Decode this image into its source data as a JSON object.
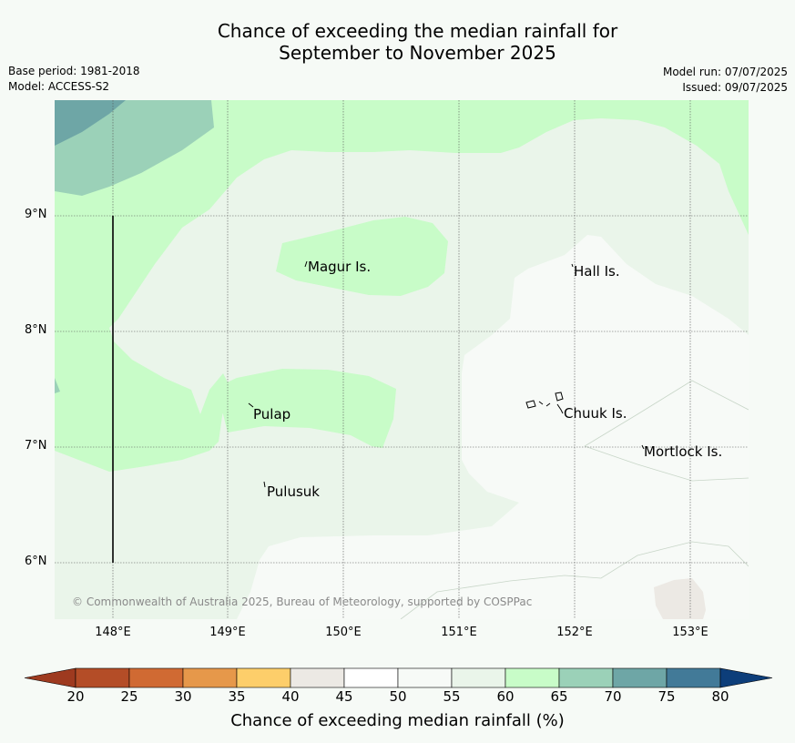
{
  "title": {
    "line1": "Chance of exceeding the median rainfall for",
    "line2": "September to November 2025"
  },
  "meta": {
    "base_period": "Base period: 1981-2018",
    "model": "Model: ACCESS-S2",
    "model_run": "Model run: 07/07/2025",
    "issued": "Issued: 09/07/2025"
  },
  "map": {
    "lat_labels": [
      "9°N",
      "8°N",
      "7°N",
      "6°N"
    ],
    "lon_labels": [
      "148°E",
      "149°E",
      "150°E",
      "151°E",
      "152°E",
      "153°E"
    ],
    "islands": [
      "Magur Is.",
      "Hall Is.",
      "Pulap",
      "Chuuk Is.",
      "Pulusuk",
      "Mortlock Is."
    ],
    "copyright": "© Commonwealth of Australia 2025, Bureau of Meteorology, supported by COSPPac"
  },
  "colorbar": {
    "label": "Chance of exceeding median rainfall (%)",
    "ticks": [
      "20",
      "25",
      "30",
      "35",
      "40",
      "45",
      "50",
      "55",
      "60",
      "65",
      "70",
      "75",
      "80"
    ],
    "colors": [
      "#9e3a1f",
      "#b44d27",
      "#d06a33",
      "#e6984a",
      "#fdce6a",
      "#ece9e4",
      "#ffffff",
      "#f7faf7",
      "#eaf5ea",
      "#c8fcc8",
      "#9bd1b8",
      "#6ea6a6",
      "#427a98",
      "#0d3e7a"
    ],
    "bin_colors_used": [
      "#ece9e4",
      "#f7faf7",
      "#eaf5ea",
      "#c8fcc8",
      "#9bd1b8",
      "#6ea6a6"
    ]
  }
}
